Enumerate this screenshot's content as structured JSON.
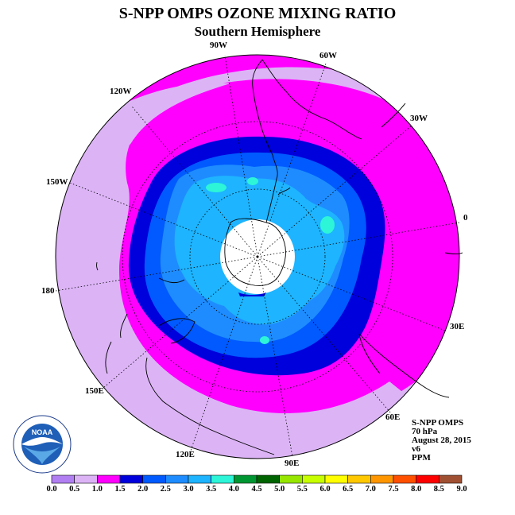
{
  "title": "S-NPP OMPS OZONE MIXING RATIO",
  "subtitle": "Southern Hemisphere",
  "longitude_labels": {
    "w90": "90W",
    "w60": "60W",
    "w30": "30W",
    "lon0": "0",
    "e30": "30E",
    "e60": "60E",
    "e90": "90E",
    "e120": "120E",
    "e150": "150E",
    "lon180": "180",
    "w150": "150W",
    "w120": "120W"
  },
  "info": {
    "instrument": "S-NPP OMPS",
    "level": "70 hPa",
    "date": "August 28, 2015",
    "version": "v6",
    "units": "PPM"
  },
  "logo_text": "NOAA",
  "colorbar": {
    "ticks": [
      "0.0",
      "0.5",
      "1.0",
      "1.5",
      "2.0",
      "2.5",
      "3.0",
      "3.5",
      "4.0",
      "4.5",
      "5.0",
      "5.5",
      "6.0",
      "6.5",
      "7.0",
      "7.5",
      "8.0",
      "8.5",
      "9.0"
    ],
    "colors": [
      "#b27ff2",
      "#dcb4f6",
      "#ff00ff",
      "#0000dc",
      "#005aff",
      "#1e8cff",
      "#1eb4ff",
      "#2df5d8",
      "#009632",
      "#006400",
      "#96e600",
      "#c8ff00",
      "#ffff00",
      "#ffc800",
      "#ff9600",
      "#ff5000",
      "#ff0000",
      "#a05032"
    ]
  },
  "map_colors": {
    "outer": "#dcb4f6",
    "band_1_0": "#ff00ff",
    "band_1_5": "#0000dc",
    "band_2_0": "#005aff",
    "band_2_5": "#1e8cff",
    "band_3_0": "#1eb4ff",
    "band_3_5": "#2df5d8",
    "pole_missing": "#ffffff"
  }
}
